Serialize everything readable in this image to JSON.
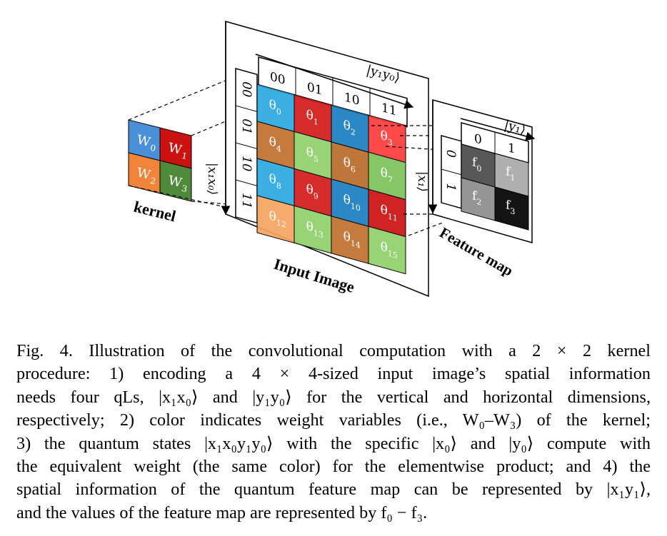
{
  "kernel": {
    "title": "kernel",
    "cells": [
      {
        "label": "W",
        "sub": "0",
        "color": "#4a90d9"
      },
      {
        "label": "W",
        "sub": "1",
        "color": "#cc1111"
      },
      {
        "label": "W",
        "sub": "2",
        "color": "#f0843a"
      },
      {
        "label": "W",
        "sub": "3",
        "color": "#4e8a3a"
      }
    ]
  },
  "input_image": {
    "title": "Input Image",
    "col_ket": "|y₁y₀⟩",
    "row_ket": "|x₁x₀⟩",
    "col_labels": [
      "00",
      "01",
      "10",
      "11"
    ],
    "row_labels": [
      "00",
      "01",
      "10",
      "11"
    ],
    "cells": [
      {
        "label": "θ",
        "sub": "0",
        "color": "#2aa8e0"
      },
      {
        "label": "θ",
        "sub": "1",
        "color": "#d21a1a"
      },
      {
        "label": "θ",
        "sub": "2",
        "color": "#1a7dc0"
      },
      {
        "label": "θ",
        "sub": "3",
        "color": "#ff3b3b"
      },
      {
        "label": "θ",
        "sub": "4",
        "color": "#c0702e"
      },
      {
        "label": "θ",
        "sub": "5",
        "color": "#8fcf6a"
      },
      {
        "label": "θ",
        "sub": "6",
        "color": "#b86b2a"
      },
      {
        "label": "θ",
        "sub": "7",
        "color": "#7cc15a"
      },
      {
        "label": "θ",
        "sub": "8",
        "color": "#2aa8e0"
      },
      {
        "label": "θ",
        "sub": "9",
        "color": "#d21a1a"
      },
      {
        "label": "θ",
        "sub": "10",
        "color": "#1a7dc0"
      },
      {
        "label": "θ",
        "sub": "11",
        "color": "#cc1111"
      },
      {
        "label": "θ",
        "sub": "12",
        "color": "#f4a460"
      },
      {
        "label": "θ",
        "sub": "13",
        "color": "#8fcf6a"
      },
      {
        "label": "θ",
        "sub": "14",
        "color": "#c0702e"
      },
      {
        "label": "θ",
        "sub": "15",
        "color": "#8fcf6a"
      }
    ]
  },
  "feature_map": {
    "title": "Feature map",
    "col_ket": "|y₁⟩",
    "row_ket": "|x₁⟩",
    "col_labels": [
      "0",
      "1"
    ],
    "row_labels": [
      "0",
      "1"
    ],
    "cells": [
      {
        "label": "f",
        "sub": "0",
        "color": "#4a4a4a"
      },
      {
        "label": "f",
        "sub": "1",
        "color": "#a8a8a8"
      },
      {
        "label": "f",
        "sub": "2",
        "color": "#8c8c8c"
      },
      {
        "label": "f",
        "sub": "3",
        "color": "#000000"
      }
    ]
  },
  "caption": {
    "lines": [
      "Fig. 4.   Illustration of the convolutional computation with a 2 × 2 kernel",
      "procedure: 1) encoding a 4 × 4-sized input image’s spatial information",
      "needs four qLs, |x₁x₀⟩ and |y₁y₀⟩ for the vertical and horizontal dimensions,",
      "respectively; 2) color indicates weight variables (i.e., W₀–W₃) of the kernel;",
      "3) the quantum states |x₁x₀y₁y₀⟩ with the specific |x₀⟩ and |y₀⟩ compute with",
      "the equivalent weight (the same color) for the elementwise product; and 4) the",
      "spatial information of the quantum feature map can be represented by |x₁y₁⟩,",
      "and the values of the feature map are represented by f₀ − f₃."
    ]
  }
}
